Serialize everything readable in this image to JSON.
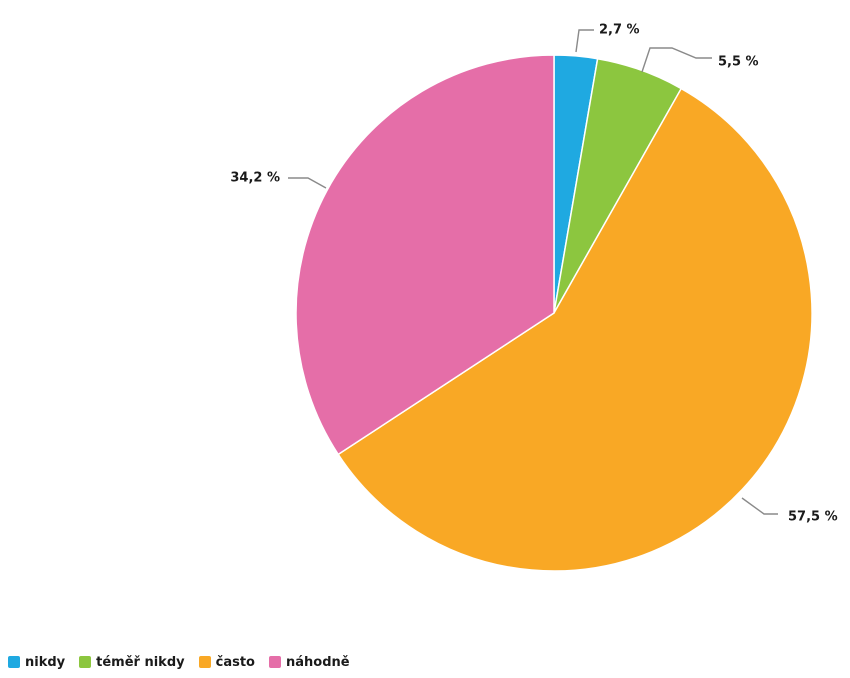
{
  "chart_data": {
    "type": "pie",
    "start_angle_deg": 0,
    "direction": "clockwise",
    "slices": [
      {
        "name": "nikdy",
        "value": 2.7,
        "label": "2,7 %",
        "color": "#1fa9e1"
      },
      {
        "name": "téměř nikdy",
        "value": 5.5,
        "label": "5,5 %",
        "color": "#8cc63f"
      },
      {
        "name": "často",
        "value": 57.5,
        "label": "57,5 %",
        "color": "#f9a825"
      },
      {
        "name": "náhodně",
        "value": 34.2,
        "label": "34,2 %",
        "color": "#e56ea8"
      }
    ],
    "legend_position": "bottom-left"
  }
}
